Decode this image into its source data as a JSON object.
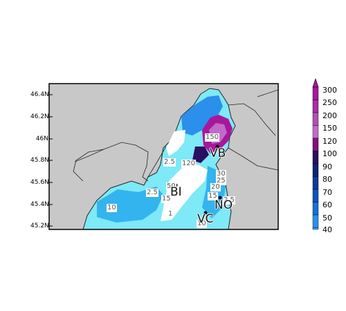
{
  "map": {
    "lat_ticks": [
      "46.4N",
      "46.2N",
      "46N",
      "45.8N",
      "45.6N",
      "45.4N",
      "45.2N"
    ],
    "colorbar": {
      "levels": [
        "300",
        "250",
        "200",
        "150",
        "120",
        "100",
        "90",
        "80",
        "70",
        "60",
        "50",
        "40"
      ],
      "colors": [
        "#a8179b",
        "#a92ea4",
        "#b04fb4",
        "#c06cc6",
        "#82127a",
        "#2a1060",
        "#0d2376",
        "#0d3a9a",
        "#0b54bb",
        "#1470d8",
        "#2b8fec",
        "#3aa6f2"
      ]
    },
    "contour_labels": [
      "150",
      "120",
      "2.5",
      "2.5",
      "30",
      "25",
      "20",
      "15",
      "10",
      "10",
      "2.5",
      "15",
      "50",
      "1"
    ],
    "cities": [
      {
        "code": "VB"
      },
      {
        "code": "BI"
      },
      {
        "code": "NO"
      },
      {
        "code": "VC"
      }
    ],
    "colors": {
      "ocean_land": "#c8c8c8",
      "precip_low": "#7ee9f7",
      "precip_mid": "#33b4ee",
      "precip_high": "#8a1a86"
    }
  }
}
